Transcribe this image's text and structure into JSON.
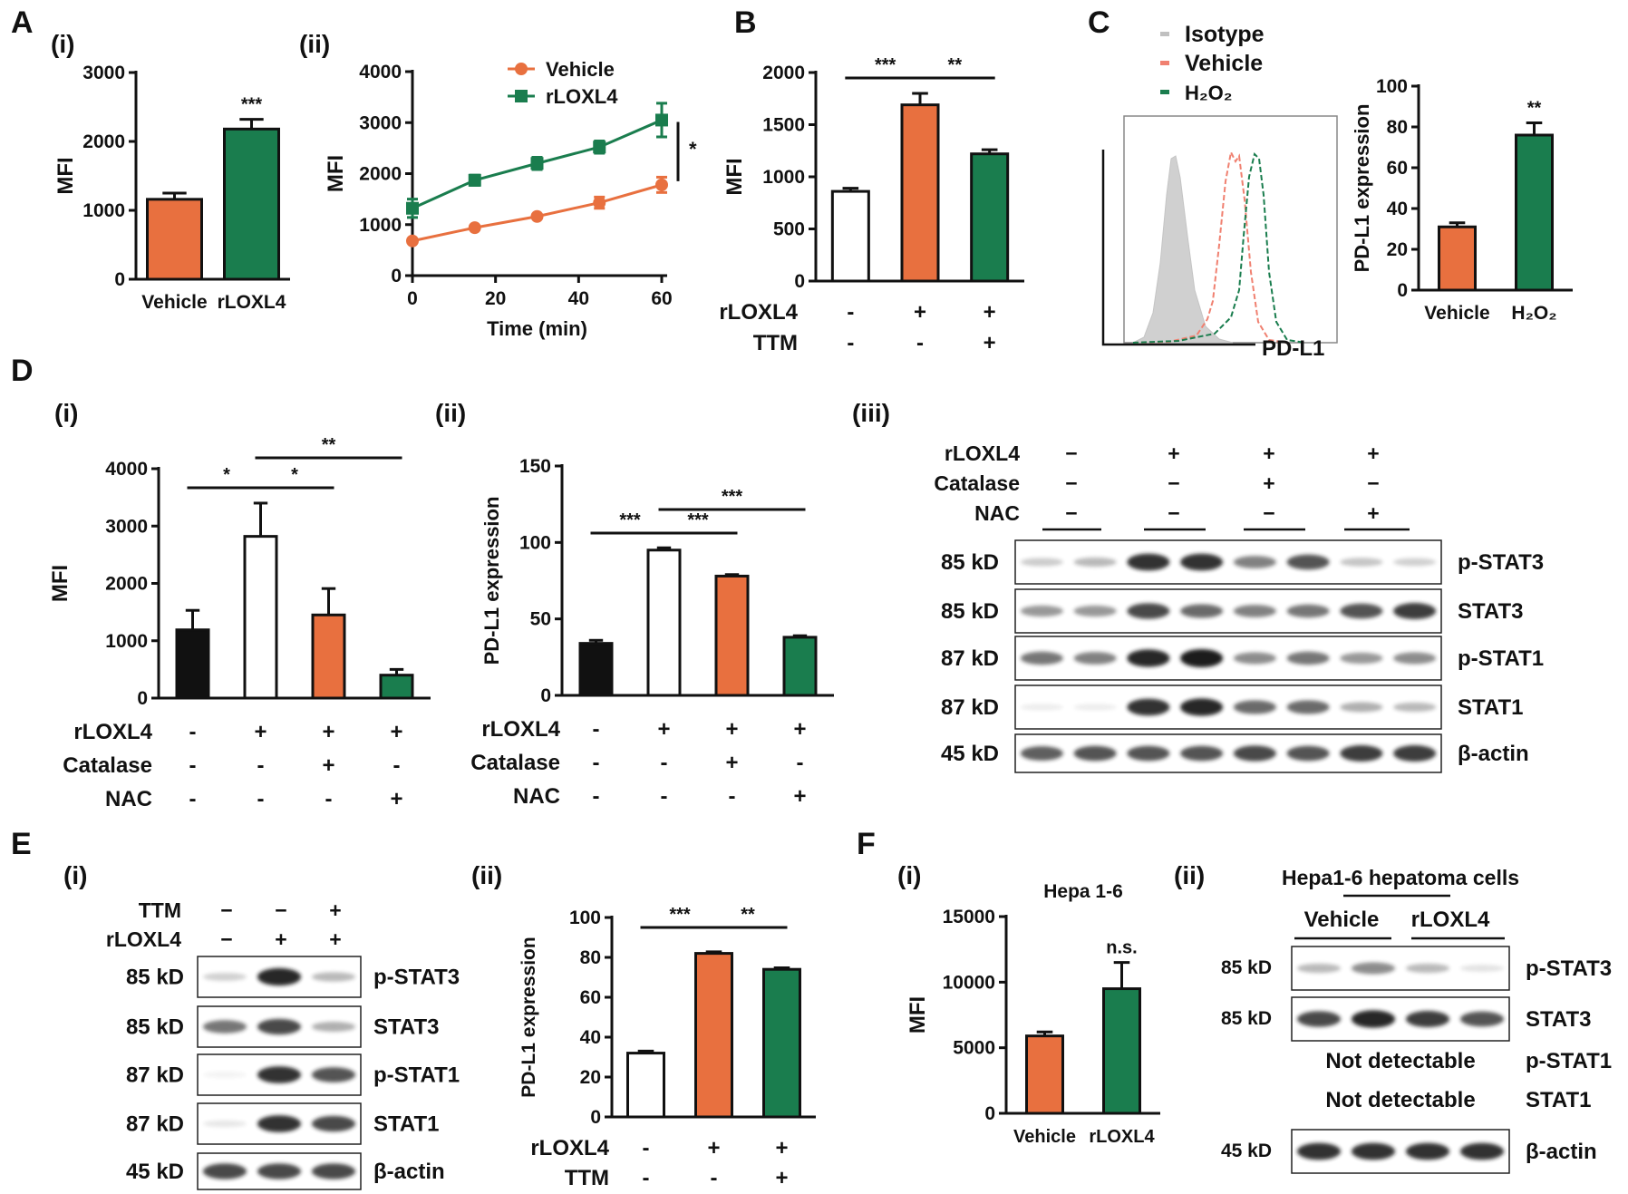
{
  "colors": {
    "vehicle": "#e8703f",
    "rloxl4": "#1a7d4e",
    "black": "#111111",
    "white": "#ffffff",
    "isotype": "#d0d0d0"
  },
  "panels": {
    "A": {
      "letter": "A",
      "i": {
        "label": "(i)",
        "chart_data": {
          "type": "bar",
          "categories": [
            "Vehicle",
            "rLOXL4"
          ],
          "values": [
            1160,
            2180
          ],
          "errors": [
            90,
            140
          ],
          "ylabel": "MFI",
          "ylim": [
            0,
            3000
          ],
          "yticks": [
            0,
            1000,
            2000,
            3000
          ],
          "significance": [
            "",
            "***"
          ],
          "colors": [
            "#e8703f",
            "#1a7d4e"
          ]
        }
      },
      "ii": {
        "label": "(ii)",
        "chart_data": {
          "type": "line",
          "x": [
            0,
            15,
            30,
            45,
            60
          ],
          "xlabel": "Time (min)",
          "ylabel": "MFI",
          "xlim": [
            0,
            60
          ],
          "ylim": [
            0,
            4000
          ],
          "xticks": [
            0,
            20,
            40,
            60
          ],
          "yticks": [
            0,
            1000,
            2000,
            3000,
            4000
          ],
          "legend": "top-right",
          "series": [
            {
              "name": "Vehicle",
              "values": [
                680,
                940,
                1160,
                1430,
                1780
              ],
              "errors": [
                40,
                40,
                40,
                110,
                150
              ],
              "color": "#e8703f",
              "marker": "circle"
            },
            {
              "name": "rLOXL4",
              "values": [
                1320,
                1870,
                2200,
                2520,
                3050
              ],
              "errors": [
                180,
                100,
                120,
                120,
                330
              ],
              "color": "#1a7d4e",
              "marker": "square"
            }
          ],
          "annotation": "*"
        }
      }
    },
    "B": {
      "letter": "B",
      "chart_data": {
        "type": "bar",
        "values": [
          860,
          1690,
          1220
        ],
        "errors": [
          30,
          110,
          40
        ],
        "ylabel": "MFI",
        "ylim": [
          0,
          2000
        ],
        "yticks": [
          0,
          500,
          1000,
          1500,
          2000
        ],
        "colors": [
          "#ffffff",
          "#e8703f",
          "#1a7d4e"
        ],
        "brackets": [
          {
            "from": 0,
            "to": 1,
            "label": "***"
          },
          {
            "from": 1,
            "to": 2,
            "label": "**"
          }
        ]
      },
      "conditions": [
        {
          "name": "rLOXL4",
          "marks": [
            "-",
            "+",
            "+"
          ]
        },
        {
          "name": "TTM",
          "marks": [
            "-",
            "-",
            "+"
          ]
        }
      ]
    },
    "C": {
      "letter": "C",
      "histogram": {
        "legend": [
          "Isotype",
          "Vehicle",
          "H₂O₂"
        ],
        "xlabel": "PD-L1"
      },
      "chart_data": {
        "type": "bar",
        "categories": [
          "Vehicle",
          "H₂O₂"
        ],
        "values": [
          31,
          76
        ],
        "errors": [
          2,
          6
        ],
        "ylabel": "PD-L1 expression",
        "ylim": [
          0,
          100
        ],
        "yticks": [
          0,
          20,
          40,
          60,
          80,
          100
        ],
        "significance": [
          "",
          "**"
        ],
        "colors": [
          "#e8703f",
          "#1a7d4e"
        ]
      }
    },
    "D": {
      "letter": "D",
      "i": {
        "label": "(i)",
        "chart_data": {
          "type": "bar",
          "values": [
            1190,
            2820,
            1450,
            400
          ],
          "errors": [
            340,
            580,
            460,
            100
          ],
          "ylabel": "MFI",
          "ylim": [
            0,
            4000
          ],
          "yticks": [
            0,
            1000,
            2000,
            3000,
            4000
          ],
          "colors": [
            "#111111",
            "#ffffff",
            "#e8703f",
            "#1a7d4e"
          ],
          "brackets": [
            {
              "from": 0,
              "to": 1,
              "label": "*"
            },
            {
              "from": 1,
              "to": 2,
              "label": "*"
            },
            {
              "from": 1,
              "to": 3,
              "label": "**"
            }
          ]
        },
        "conditions": [
          {
            "name": "rLOXL4",
            "marks": [
              "-",
              "+",
              "+",
              "+"
            ]
          },
          {
            "name": "Catalase",
            "marks": [
              "-",
              "-",
              "+",
              "-"
            ]
          },
          {
            "name": "NAC",
            "marks": [
              "-",
              "-",
              "-",
              "+"
            ]
          }
        ]
      },
      "ii": {
        "label": "(ii)",
        "chart_data": {
          "type": "bar",
          "values": [
            34,
            95,
            78,
            38
          ],
          "errors": [
            2,
            1.5,
            1,
            1
          ],
          "ylabel": "PD-L1 expression",
          "ylim": [
            0,
            150
          ],
          "yticks": [
            0,
            50,
            100,
            150
          ],
          "colors": [
            "#111111",
            "#ffffff",
            "#e8703f",
            "#1a7d4e"
          ],
          "brackets": [
            {
              "from": 0,
              "to": 1,
              "label": "***"
            },
            {
              "from": 1,
              "to": 2,
              "label": "***"
            },
            {
              "from": 1,
              "to": 3,
              "label": "***"
            }
          ]
        },
        "conditions": [
          {
            "name": "rLOXL4",
            "marks": [
              "-",
              "+",
              "+",
              "+"
            ]
          },
          {
            "name": "Catalase",
            "marks": [
              "-",
              "-",
              "+",
              "-"
            ]
          },
          {
            "name": "NAC",
            "marks": [
              "-",
              "-",
              "-",
              "+"
            ]
          }
        ]
      },
      "iii": {
        "label": "(iii)",
        "conditions": [
          {
            "name": "rLOXL4",
            "marks": [
              "−",
              "+",
              "+",
              "+"
            ]
          },
          {
            "name": "Catalase",
            "marks": [
              "−",
              "−",
              "+",
              "−"
            ]
          },
          {
            "name": "NAC",
            "marks": [
              "−",
              "−",
              "−",
              "+"
            ]
          }
        ],
        "blots": [
          {
            "kd": "85 kD",
            "name": "p-STAT3",
            "intensity": [
              0.22,
              0.3,
              0.9,
              0.9,
              0.55,
              0.75,
              0.25,
              0.2
            ]
          },
          {
            "kd": "85 kD",
            "name": "STAT3",
            "intensity": [
              0.45,
              0.45,
              0.8,
              0.65,
              0.55,
              0.6,
              0.75,
              0.85
            ]
          },
          {
            "kd": "87 kD",
            "name": "p-STAT1",
            "intensity": [
              0.6,
              0.55,
              0.95,
              1.0,
              0.5,
              0.6,
              0.45,
              0.5
            ]
          },
          {
            "kd": "87 kD",
            "name": "STAT1",
            "intensity": [
              0.08,
              0.08,
              0.9,
              0.95,
              0.65,
              0.65,
              0.35,
              0.3
            ]
          },
          {
            "kd": "45 kD",
            "name": "β-actin",
            "intensity": [
              0.7,
              0.75,
              0.75,
              0.75,
              0.8,
              0.75,
              0.85,
              0.85
            ]
          }
        ]
      }
    },
    "E": {
      "letter": "E",
      "i": {
        "label": "(i)",
        "conditions": [
          {
            "name": "TTM",
            "marks": [
              "−",
              "−",
              "+"
            ]
          },
          {
            "name": "rLOXL4",
            "marks": [
              "−",
              "+",
              "+"
            ]
          }
        ],
        "blots": [
          {
            "kd": "85 kD",
            "name": "p-STAT3",
            "intensity": [
              0.2,
              0.95,
              0.3
            ]
          },
          {
            "kd": "85 kD",
            "name": "STAT3",
            "intensity": [
              0.6,
              0.8,
              0.35
            ]
          },
          {
            "kd": "87 kD",
            "name": "p-STAT1",
            "intensity": [
              0.05,
              0.9,
              0.75
            ]
          },
          {
            "kd": "87 kD",
            "name": "STAT1",
            "intensity": [
              0.1,
              0.9,
              0.8
            ]
          },
          {
            "kd": "45 kD",
            "name": "β-actin",
            "intensity": [
              0.8,
              0.8,
              0.8
            ]
          }
        ]
      },
      "ii": {
        "label": "(ii)",
        "chart_data": {
          "type": "bar",
          "values": [
            32,
            82,
            74
          ],
          "errors": [
            1,
            0.8,
            0.8
          ],
          "ylabel": "PD-L1 expression",
          "ylim": [
            0,
            100
          ],
          "yticks": [
            0,
            20,
            40,
            60,
            80,
            100
          ],
          "colors": [
            "#ffffff",
            "#e8703f",
            "#1a7d4e"
          ],
          "brackets": [
            {
              "from": 0,
              "to": 1,
              "label": "***"
            },
            {
              "from": 1,
              "to": 2,
              "label": "**"
            }
          ]
        },
        "conditions": [
          {
            "name": "rLOXL4",
            "marks": [
              "-",
              "+",
              "+"
            ]
          },
          {
            "name": "TTM",
            "marks": [
              "-",
              "-",
              "+"
            ]
          }
        ]
      }
    },
    "F": {
      "letter": "F",
      "i": {
        "label": "(i)",
        "chart_data": {
          "type": "bar",
          "title": "Hepa 1-6",
          "categories": [
            "Vehicle",
            "rLOXL4"
          ],
          "values": [
            5900,
            9500
          ],
          "errors": [
            300,
            2000
          ],
          "ylabel": "MFI",
          "ylim": [
            0,
            15000
          ],
          "yticks": [
            0,
            5000,
            10000,
            15000
          ],
          "significance": [
            "",
            "n.s."
          ],
          "colors": [
            "#e8703f",
            "#1a7d4e"
          ]
        }
      },
      "ii": {
        "label": "(ii)",
        "title": "Hepa1-6 hepatoma cells",
        "groups": [
          "Vehicle",
          "rLOXL4"
        ],
        "blots": [
          {
            "kd": "85 kD",
            "name": "p-STAT3",
            "intensity": [
              0.3,
              0.5,
              0.3,
              0.12
            ]
          },
          {
            "kd": "85 kD",
            "name": "STAT3",
            "intensity": [
              0.8,
              0.95,
              0.85,
              0.75
            ]
          },
          {
            "kd": "",
            "name": "p-STAT1",
            "note": "Not detectable"
          },
          {
            "kd": "",
            "name": "STAT1",
            "note": "Not detectable"
          },
          {
            "kd": "45 kD",
            "name": "β-actin",
            "intensity": [
              0.9,
              0.9,
              0.9,
              0.9
            ]
          }
        ]
      }
    }
  }
}
